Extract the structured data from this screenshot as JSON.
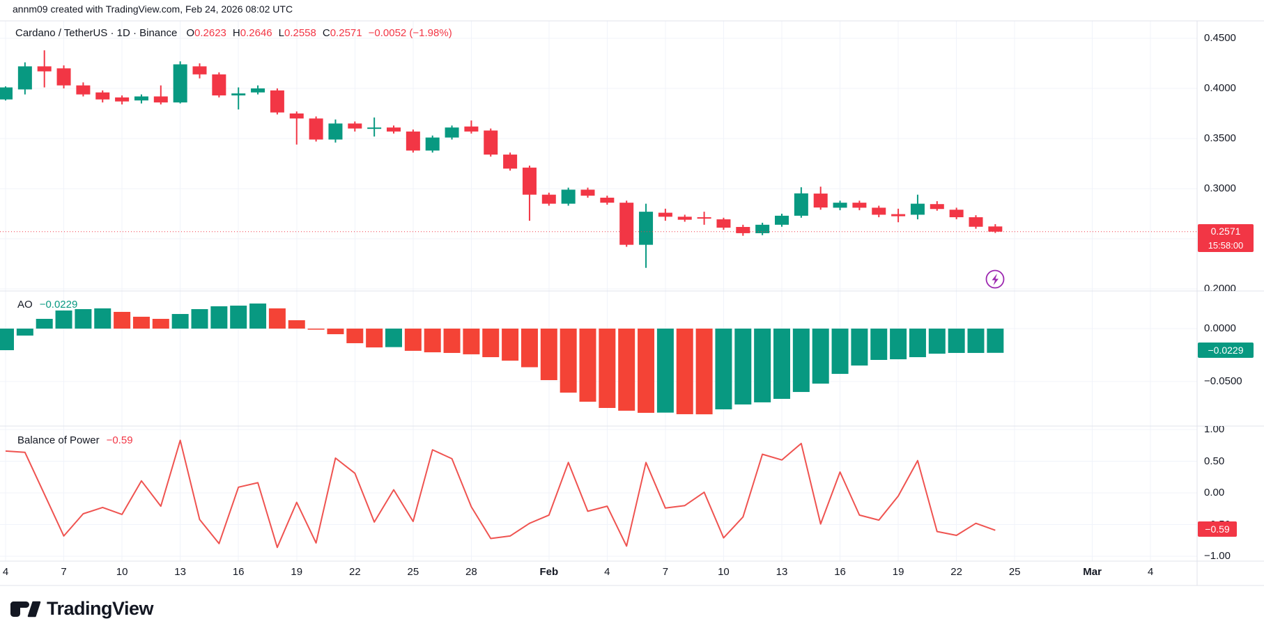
{
  "header": {
    "attribution": "annm09 created with TradingView.com, Feb 24, 2026 08:02 UTC"
  },
  "legend": {
    "title": "Cardano / TetherUS · 1D · Binance",
    "o_label": "O",
    "o": "0.2623",
    "h_label": "H",
    "h": "0.2646",
    "l_label": "L",
    "l": "0.2558",
    "c_label": "C",
    "c": "0.2571",
    "change": "−0.0052 (−1.98%)"
  },
  "branding": {
    "name": "TradingView"
  },
  "colors": {
    "up": "#089981",
    "down": "#f23645",
    "ao_up": "#089981",
    "ao_down": "#f44336",
    "bop_line": "#ef5350",
    "badge_red": "#f23645",
    "badge_teal": "#089981",
    "grid": "#f0f3fa",
    "separator": "#e0e3eb",
    "text": "#131722",
    "events_icon": "#9c27b0"
  },
  "time_axis": {
    "ticks": [
      {
        "label": "4",
        "day": 0,
        "bold": false
      },
      {
        "label": "7",
        "day": 3,
        "bold": false
      },
      {
        "label": "10",
        "day": 6,
        "bold": false
      },
      {
        "label": "13",
        "day": 9,
        "bold": false
      },
      {
        "label": "16",
        "day": 12,
        "bold": false
      },
      {
        "label": "19",
        "day": 15,
        "bold": false
      },
      {
        "label": "22",
        "day": 18,
        "bold": false
      },
      {
        "label": "25",
        "day": 21,
        "bold": false
      },
      {
        "label": "28",
        "day": 24,
        "bold": false
      },
      {
        "label": "Feb",
        "day": 28,
        "bold": true
      },
      {
        "label": "4",
        "day": 31,
        "bold": false
      },
      {
        "label": "7",
        "day": 34,
        "bold": false
      },
      {
        "label": "10",
        "day": 37,
        "bold": false
      },
      {
        "label": "13",
        "day": 40,
        "bold": false
      },
      {
        "label": "16",
        "day": 43,
        "bold": false
      },
      {
        "label": "19",
        "day": 46,
        "bold": false
      },
      {
        "label": "22",
        "day": 49,
        "bold": false
      },
      {
        "label": "25",
        "day": 52,
        "bold": false
      },
      {
        "label": "Mar",
        "day": 56,
        "bold": true
      },
      {
        "label": "4",
        "day": 59,
        "bold": false
      }
    ]
  },
  "chart_data": [
    {
      "type": "candlestick",
      "name": "Cardano / TetherUS",
      "interval": "1D",
      "exchange": "Binance",
      "start_date": "Jan 4",
      "end_date": "Feb 24",
      "last_price": 0.2571,
      "last_price_label": "0.2571",
      "countdown": "15:58:00",
      "ylim": [
        0.19,
        0.47
      ],
      "y_axis_labels": [
        {
          "text": "0.4500",
          "value": 0.45
        },
        {
          "text": "0.4000",
          "value": 0.4
        },
        {
          "text": "0.3500",
          "value": 0.35
        },
        {
          "text": "0.3000",
          "value": 0.3
        },
        {
          "text": "0.2000",
          "value": 0.2
        }
      ],
      "gridline_values": [
        0.45,
        0.4,
        0.35,
        0.3,
        0.25,
        0.2
      ],
      "ohlc_order": "[open, high, low, close]",
      "candles": [
        [
          0.389,
          0.402,
          0.388,
          0.401
        ],
        [
          0.399,
          0.426,
          0.394,
          0.422
        ],
        [
          0.422,
          0.438,
          0.401,
          0.417
        ],
        [
          0.42,
          0.423,
          0.4,
          0.403
        ],
        [
          0.403,
          0.406,
          0.392,
          0.394
        ],
        [
          0.396,
          0.398,
          0.386,
          0.389
        ],
        [
          0.391,
          0.393,
          0.384,
          0.387
        ],
        [
          0.388,
          0.394,
          0.385,
          0.392
        ],
        [
          0.392,
          0.403,
          0.384,
          0.386
        ],
        [
          0.386,
          0.427,
          0.385,
          0.424
        ],
        [
          0.422,
          0.425,
          0.41,
          0.414
        ],
        [
          0.414,
          0.416,
          0.391,
          0.393
        ],
        [
          0.393,
          0.401,
          0.379,
          0.395
        ],
        [
          0.396,
          0.403,
          0.394,
          0.4
        ],
        [
          0.398,
          0.4,
          0.374,
          0.376
        ],
        [
          0.375,
          0.377,
          0.344,
          0.37
        ],
        [
          0.37,
          0.372,
          0.347,
          0.349
        ],
        [
          0.349,
          0.369,
          0.346,
          0.365
        ],
        [
          0.365,
          0.367,
          0.357,
          0.36
        ],
        [
          0.36,
          0.371,
          0.352,
          0.361
        ],
        [
          0.361,
          0.363,
          0.355,
          0.357
        ],
        [
          0.357,
          0.359,
          0.336,
          0.338
        ],
        [
          0.338,
          0.353,
          0.336,
          0.351
        ],
        [
          0.351,
          0.363,
          0.349,
          0.361
        ],
        [
          0.362,
          0.368,
          0.355,
          0.357
        ],
        [
          0.358,
          0.36,
          0.332,
          0.334
        ],
        [
          0.334,
          0.336,
          0.318,
          0.32
        ],
        [
          0.321,
          0.323,
          0.268,
          0.294
        ],
        [
          0.294,
          0.296,
          0.283,
          0.285
        ],
        [
          0.285,
          0.301,
          0.283,
          0.299
        ],
        [
          0.299,
          0.301,
          0.291,
          0.293
        ],
        [
          0.291,
          0.293,
          0.284,
          0.286
        ],
        [
          0.286,
          0.288,
          0.242,
          0.244
        ],
        [
          0.244,
          0.285,
          0.221,
          0.277
        ],
        [
          0.276,
          0.28,
          0.268,
          0.272
        ],
        [
          0.272,
          0.274,
          0.267,
          0.269
        ],
        [
          0.2715,
          0.277,
          0.264,
          0.2705
        ],
        [
          0.2694,
          0.271,
          0.259,
          0.2611
        ],
        [
          0.2618,
          0.264,
          0.253,
          0.2556
        ],
        [
          0.2556,
          0.266,
          0.2536,
          0.264
        ],
        [
          0.264,
          0.275,
          0.262,
          0.273
        ],
        [
          0.273,
          0.3014,
          0.271,
          0.2953
        ],
        [
          0.2951,
          0.302,
          0.279,
          0.2812
        ],
        [
          0.281,
          0.288,
          0.2785,
          0.286
        ],
        [
          0.286,
          0.288,
          0.2785,
          0.281
        ],
        [
          0.281,
          0.283,
          0.2715,
          0.274
        ],
        [
          0.2746,
          0.28,
          0.2665,
          0.2725
        ],
        [
          0.274,
          0.294,
          0.2694,
          0.285
        ],
        [
          0.2846,
          0.2875,
          0.278,
          0.2797
        ],
        [
          0.279,
          0.281,
          0.2695,
          0.2715
        ],
        [
          0.2715,
          0.2735,
          0.26,
          0.262
        ],
        [
          0.2623,
          0.2646,
          0.2558,
          0.2571
        ]
      ]
    },
    {
      "type": "bar",
      "name": "AO",
      "value_label": "−0.0229",
      "current_value": -0.0229,
      "y_axis_labels": [
        {
          "text": "0.0000",
          "value": 0
        },
        {
          "text": "−0.0500",
          "value": -0.05
        }
      ],
      "gridline_values": [
        0,
        -0.05
      ],
      "values": [
        -0.0204,
        -0.0066,
        0.0092,
        0.0171,
        0.0184,
        0.0191,
        0.0158,
        0.0112,
        0.0092,
        0.0138,
        0.0184,
        0.0211,
        0.0217,
        0.0237,
        0.0191,
        0.0079,
        -0.001,
        -0.0053,
        -0.0138,
        -0.0178,
        -0.0175,
        -0.021,
        -0.0224,
        -0.023,
        -0.0243,
        -0.027,
        -0.0303,
        -0.0365,
        -0.0487,
        -0.0605,
        -0.0691,
        -0.075,
        -0.0776,
        -0.0796,
        -0.0794,
        -0.0809,
        -0.081,
        -0.0763,
        -0.0717,
        -0.0697,
        -0.0664,
        -0.0599,
        -0.052,
        -0.0428,
        -0.0349,
        -0.0296,
        -0.029,
        -0.027,
        -0.0237,
        -0.023,
        -0.023,
        -0.0229
      ]
    },
    {
      "type": "line",
      "name": "Balance of Power",
      "value_label": "−0.59",
      "current_value": -0.59,
      "ylim": [
        -1,
        1
      ],
      "y_axis_labels": [
        {
          "text": "1.00",
          "value": 1
        },
        {
          "text": "0.50",
          "value": 0.5
        },
        {
          "text": "0.00",
          "value": 0
        },
        {
          "text": "−0.50",
          "value": -0.5
        },
        {
          "text": "−1.00",
          "value": -1
        }
      ],
      "gridline_values": [
        1,
        0.5,
        0,
        -0.5,
        -1
      ],
      "values": [
        0.66,
        0.64,
        -0.02,
        -0.68,
        -0.33,
        -0.23,
        -0.34,
        0.19,
        -0.21,
        0.83,
        -0.42,
        -0.8,
        0.09,
        0.16,
        -0.86,
        -0.15,
        -0.79,
        0.55,
        0.31,
        -0.46,
        0.05,
        -0.45,
        0.68,
        0.54,
        -0.22,
        -0.72,
        -0.68,
        -0.48,
        -0.35,
        0.48,
        -0.29,
        -0.21,
        -0.84,
        0.48,
        -0.24,
        -0.2,
        0.01,
        -0.71,
        -0.38,
        0.61,
        0.52,
        0.78,
        -0.49,
        0.33,
        -0.35,
        -0.43,
        -0.05,
        0.51,
        -0.61,
        -0.67,
        -0.48,
        -0.59
      ]
    }
  ]
}
